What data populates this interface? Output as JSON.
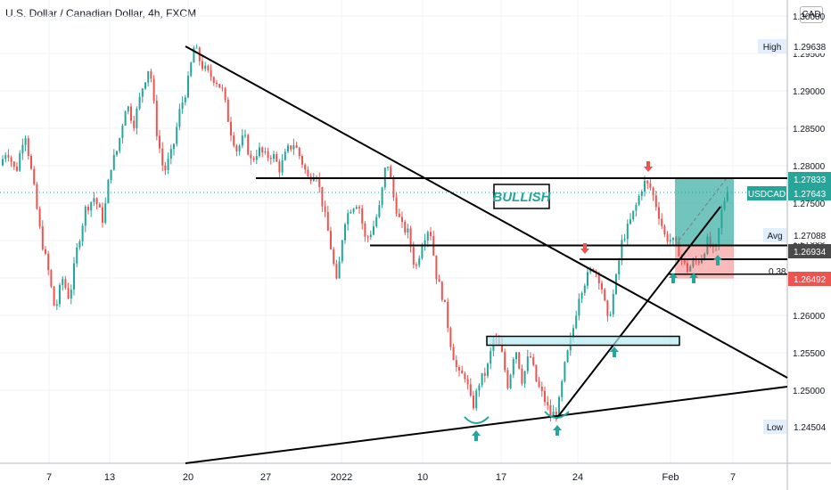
{
  "header": {
    "title": "U.S. Dollar / Canadian Dollar, 4h, FXCM",
    "currency": "CAD"
  },
  "chart_data": {
    "type": "candlestick",
    "symbol": "USDCAD",
    "y_axis": {
      "ticks": [
        "1.25000",
        "1.25500",
        "1.26000",
        "1.26500",
        "1.27000",
        "1.27500",
        "1.28000",
        "1.28500",
        "1.29000",
        "1.29500",
        "1.30000"
      ],
      "ylim": [
        1.2405,
        1.3028
      ]
    },
    "x_axis": {
      "ticks": [
        "7",
        "13",
        "20",
        "27",
        "2022",
        "10",
        "17",
        "24",
        "Feb",
        "7"
      ]
    },
    "price_labels": [
      {
        "name": "High",
        "value": "1.29638"
      },
      {
        "name": "",
        "value": "1.27833",
        "color": "#26a69a"
      },
      {
        "name": "USDCAD",
        "value": "1.27643",
        "color": "#26a69a"
      },
      {
        "name": "Avg",
        "value": "1.27088"
      },
      {
        "name": "",
        "value": "1.26934",
        "color": "#4a4a4a"
      },
      {
        "name": "",
        "value": "1.26492",
        "color": "#ef5350"
      },
      {
        "name": "Low",
        "value": "1.24504"
      }
    ],
    "annotations": {
      "bullish_label": "BULLISH",
      "fib_label": "0.38",
      "horizontal_levels": [
        1.27833,
        1.26934,
        1.2675,
        1.2655
      ],
      "resistance_trendline": {
        "from": "20 Dec",
        "to": "end",
        "start": 1.2957,
        "end": 1.2515
      },
      "support_trendline": {
        "start": 1.2405,
        "end": 1.2505
      },
      "demand_zone": {
        "top": 1.2572,
        "bottom": 1.2561
      },
      "position": {
        "entry": 1.26934,
        "target": 1.27833,
        "stop": 1.26492
      }
    },
    "colors": {
      "up": "#26a69a",
      "down": "#ef5350",
      "last_price_line": "#26a69a"
    }
  }
}
